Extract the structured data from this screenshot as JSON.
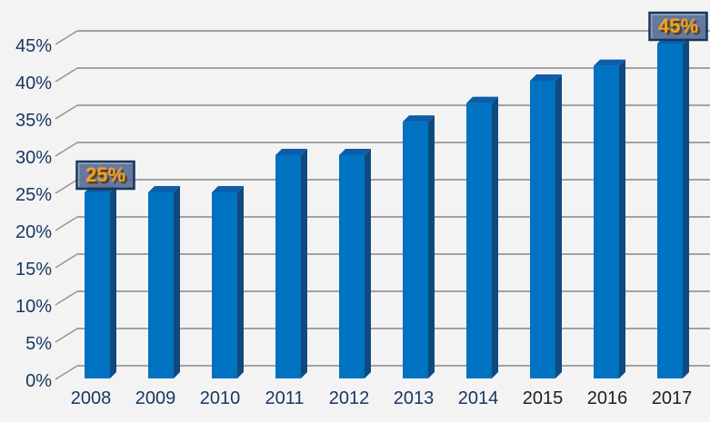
{
  "chart_data": {
    "type": "bar",
    "style": "3d-beveled-columns",
    "title": "",
    "categories": [
      "2008",
      "2009",
      "2010",
      "2011",
      "2012",
      "2013",
      "2014",
      "2015",
      "2016",
      "2017"
    ],
    "values": [
      25,
      25,
      25,
      30,
      30,
      34.5,
      37,
      40,
      42,
      45
    ],
    "value_suffix": "%",
    "xlabel": "",
    "ylabel": "",
    "ylim": [
      0,
      45
    ],
    "ytick_step": 5,
    "ytick_labels": [
      "0%",
      "5%",
      "10%",
      "15%",
      "20%",
      "25%",
      "30%",
      "35%",
      "40%",
      "45%"
    ],
    "grid": true,
    "legend": false,
    "callouts": [
      {
        "category": "2008",
        "text": "25%"
      },
      {
        "category": "2017",
        "text": "45%"
      }
    ],
    "xtick_alt_categories": [
      "2015",
      "2016",
      "2017"
    ],
    "colors": {
      "background": "#f3f3f4",
      "bar_front": "#0072c2",
      "bar_side": "#0e4a7e",
      "bar_top": "#0c5ea8",
      "gridline": "#969696",
      "tick_label": "#17375e",
      "xtick_label_alt": "#1f1f1f",
      "callout_bg": "#5e7098",
      "callout_border": "#16365d",
      "callout_text": "#f9a11b",
      "callout_text_shadow": "#4f3a08"
    }
  }
}
